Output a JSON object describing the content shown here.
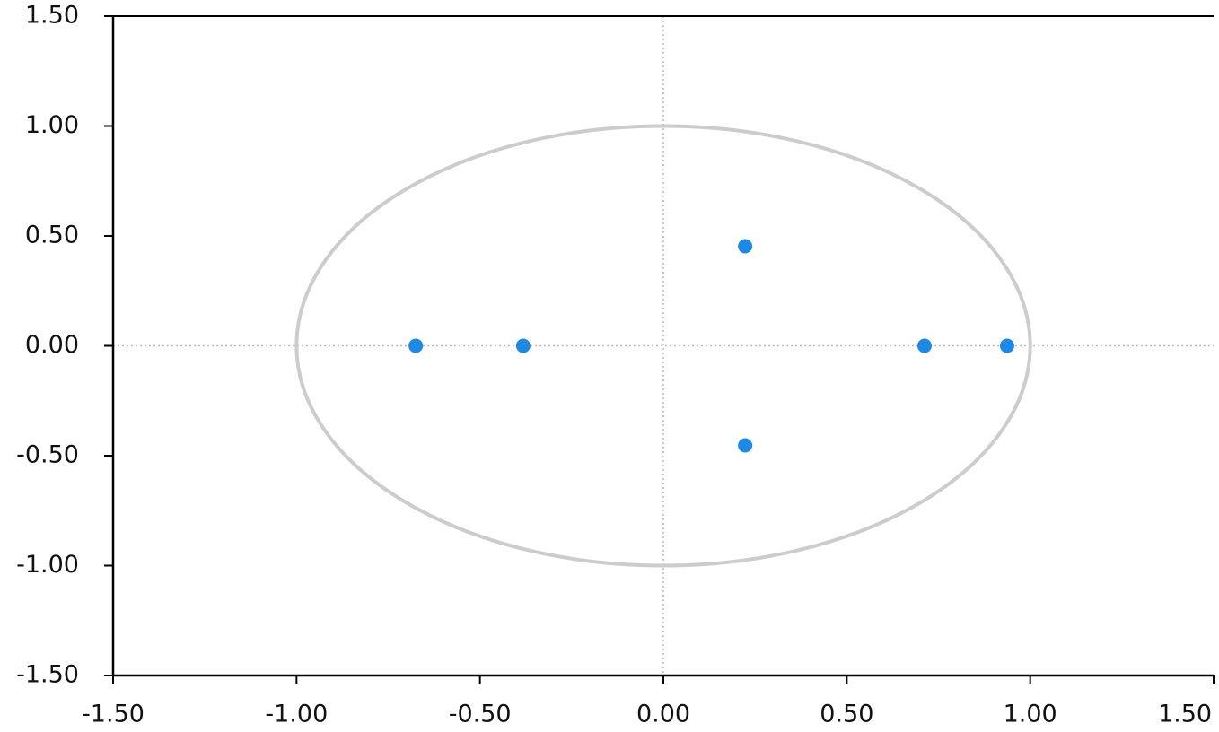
{
  "chart_data": {
    "type": "scatter",
    "series": [
      {
        "color": "#1e88e5",
        "x": [
          -0.675,
          -0.382,
          0.223,
          0.223,
          0.712,
          0.937
        ],
        "values": [
          0,
          0,
          0.453,
          -0.453,
          0,
          0
        ]
      }
    ],
    "xlim": [
      -1.5,
      1.5
    ],
    "ylim": [
      -1.5,
      1.5
    ],
    "xticks": [
      {
        "value": -1.5,
        "label": "-1.50"
      },
      {
        "value": -1,
        "label": "-1.00"
      },
      {
        "value": -0.5,
        "label": "-0.50"
      },
      {
        "value": 0,
        "label": "0.00"
      },
      {
        "value": 0.5,
        "label": "0.50"
      },
      {
        "value": 1,
        "label": "1.00"
      },
      {
        "value": 1.5,
        "label": "1.50"
      }
    ],
    "yticks": [
      {
        "value": -1.5,
        "label": "-1.50"
      },
      {
        "value": -1,
        "label": "-1.00"
      },
      {
        "value": -0.5,
        "label": "-0.50"
      },
      {
        "value": 0,
        "label": "0.00"
      },
      {
        "value": 0.5,
        "label": "0.50"
      },
      {
        "value": 1,
        "label": "1.00"
      },
      {
        "value": 1.5,
        "label": "1.50"
      }
    ],
    "zero_lines": true,
    "reference_circle": {
      "radius": 1,
      "color": "#cccccc"
    }
  }
}
